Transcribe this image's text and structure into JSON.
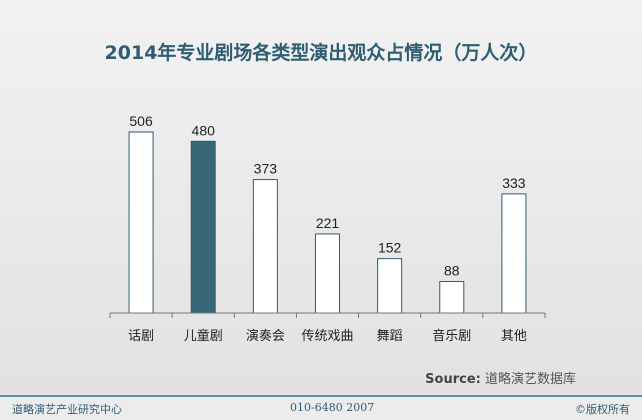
{
  "chart_data": {
    "type": "bar",
    "title": "2014年专业剧场各类型演出观众占情况（万人次）",
    "categories": [
      "话剧",
      "儿童剧",
      "演奏会",
      "传统戏曲",
      "舞蹈",
      "音乐剧",
      "其他"
    ],
    "values": [
      506,
      480,
      373,
      221,
      152,
      88,
      333
    ],
    "highlight_index": 1,
    "ylim": [
      0,
      520
    ],
    "grid": false,
    "xlabel": "",
    "ylabel": ""
  },
  "colors": {
    "bar_fill": "#ffffff",
    "bar_stroke": "#2f5d73",
    "highlight_fill": "#356776",
    "title": "#2f5d73",
    "footer_rule": "#5a8fb0"
  },
  "source": {
    "label": "Source:",
    "text": "道略演艺数据库"
  },
  "footer": {
    "left": "道略演艺产业研究中心",
    "middle": "010-6480 2007",
    "right": "©版权所有"
  }
}
